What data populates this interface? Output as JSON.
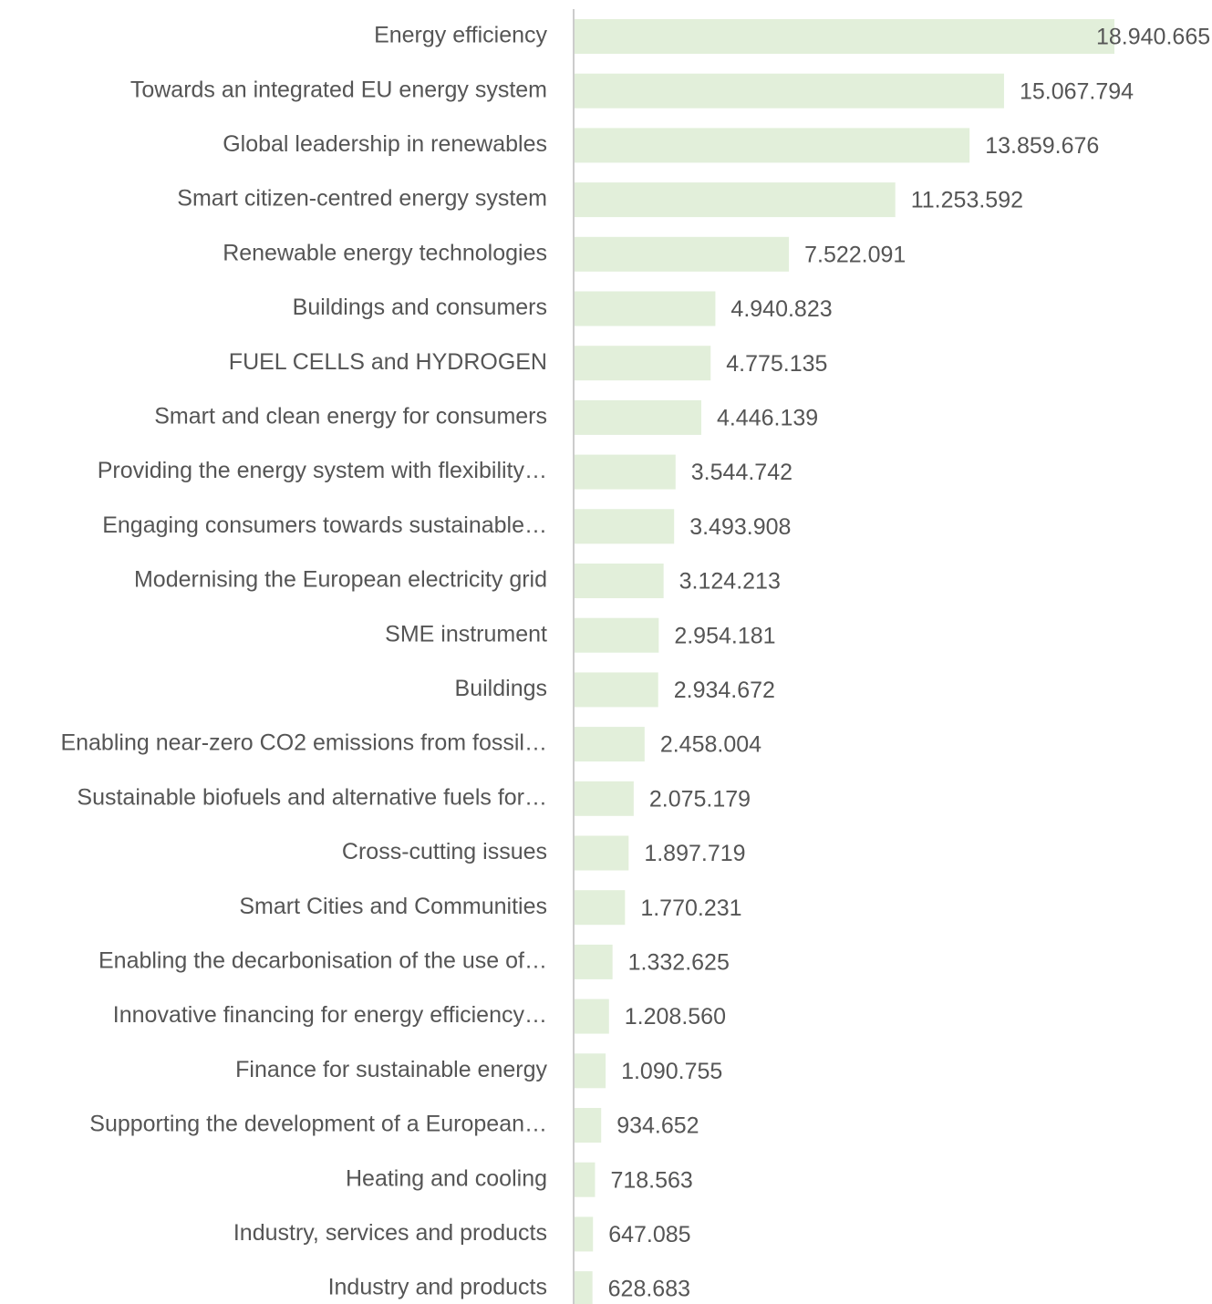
{
  "chart_data": {
    "type": "bar",
    "orientation": "horizontal",
    "color": "#e2efda",
    "categories": [
      "Energy efficiency",
      "Towards an integrated EU energy system",
      "Global leadership in renewables",
      "Smart citizen-centred energy system",
      "Renewable energy technologies",
      "Buildings and consumers",
      "FUEL CELLS and HYDROGEN",
      "Smart and clean energy for consumers",
      "Providing the energy system with flexibility…",
      "Engaging consumers towards sustainable…",
      "Modernising the European electricity grid",
      "SME instrument",
      "Buildings",
      "Enabling near-zero CO2 emissions from fossil…",
      "Sustainable biofuels and alternative fuels for…",
      "Cross-cutting issues",
      "Smart Cities and Communities",
      "Enabling the decarbonisation of the use of…",
      "Innovative financing for energy efficiency…",
      "Finance for sustainable energy",
      "Supporting the development of a European…",
      "Heating and cooling",
      "Industry, services and products",
      "Industry and products"
    ],
    "values": [
      18940665,
      15067794,
      13859676,
      11253592,
      7522091,
      4940823,
      4775135,
      4446139,
      3544742,
      3493908,
      3124213,
      2954181,
      2934672,
      2458004,
      2075179,
      1897719,
      1770231,
      1332625,
      1208560,
      1090755,
      934652,
      718563,
      647085,
      628683
    ],
    "value_labels": [
      "18.940.665",
      "15.067.794",
      "13.859.676",
      "11.253.592",
      "7.522.091",
      "4.940.823",
      "4.775.135",
      "4.446.139",
      "3.544.742",
      "3.493.908",
      "3.124.213",
      "2.954.181",
      "2.934.672",
      "2.458.004",
      "2.075.179",
      "1.897.719",
      "1.770.231",
      "1.332.625",
      "1.208.560",
      "1.090.755",
      "934.652",
      "718.563",
      "647.085",
      "628.683"
    ]
  }
}
